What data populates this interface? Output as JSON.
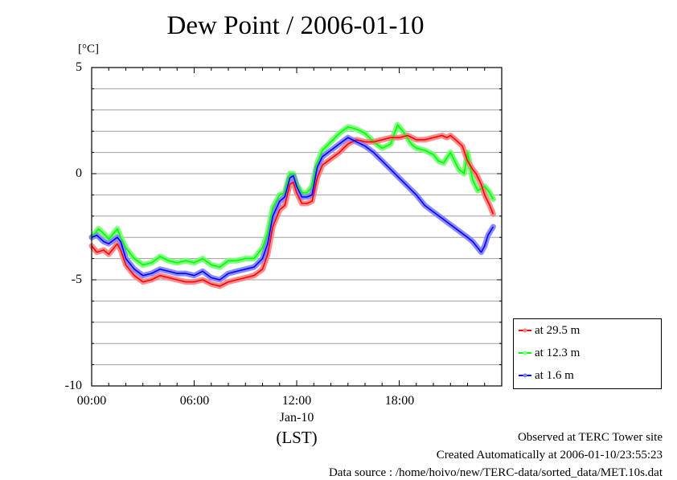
{
  "title": "Dew Point / 2006-01-10",
  "chart_data": {
    "type": "line",
    "title": "Dew Point / 2006-01-10",
    "ylabel": "[°C]",
    "xlabel": "(LST)",
    "x_date_label": "Jan-10",
    "ylim": [
      -10,
      5
    ],
    "xlim": [
      0,
      24
    ],
    "xticks": [
      "00:00",
      "06:00",
      "12:00",
      "18:00"
    ],
    "yticks": [
      "5",
      "0",
      "-5",
      "-10"
    ],
    "grid": true,
    "legend_position": "lower-right-outside",
    "series": [
      {
        "name": "at 29.5 m",
        "color": "#ff0000",
        "points": [
          [
            0.0,
            -3.4
          ],
          [
            0.3,
            -3.7
          ],
          [
            0.7,
            -3.6
          ],
          [
            1.0,
            -3.8
          ],
          [
            1.5,
            -3.3
          ],
          [
            1.7,
            -3.6
          ],
          [
            2.0,
            -4.3
          ],
          [
            2.5,
            -4.8
          ],
          [
            3.0,
            -5.1
          ],
          [
            3.5,
            -5.0
          ],
          [
            4.0,
            -4.8
          ],
          [
            4.5,
            -4.9
          ],
          [
            5.0,
            -5.0
          ],
          [
            5.5,
            -5.1
          ],
          [
            6.0,
            -5.1
          ],
          [
            6.5,
            -5.0
          ],
          [
            7.0,
            -5.2
          ],
          [
            7.5,
            -5.3
          ],
          [
            8.0,
            -5.1
          ],
          [
            8.5,
            -5.0
          ],
          [
            9.0,
            -4.9
          ],
          [
            9.5,
            -4.8
          ],
          [
            10.0,
            -4.5
          ],
          [
            10.3,
            -3.8
          ],
          [
            10.6,
            -2.5
          ],
          [
            11.0,
            -1.7
          ],
          [
            11.3,
            -1.5
          ],
          [
            11.6,
            -0.5
          ],
          [
            11.8,
            -0.4
          ],
          [
            12.0,
            -0.9
          ],
          [
            12.3,
            -1.4
          ],
          [
            12.6,
            -1.4
          ],
          [
            12.9,
            -1.3
          ],
          [
            13.2,
            -0.2
          ],
          [
            13.5,
            0.4
          ],
          [
            14.0,
            0.7
          ],
          [
            14.5,
            1.0
          ],
          [
            15.0,
            1.4
          ],
          [
            15.5,
            1.6
          ],
          [
            16.0,
            1.5
          ],
          [
            16.5,
            1.5
          ],
          [
            17.0,
            1.6
          ],
          [
            17.5,
            1.7
          ],
          [
            18.0,
            1.7
          ],
          [
            18.5,
            1.8
          ],
          [
            19.0,
            1.6
          ],
          [
            19.5,
            1.6
          ],
          [
            20.0,
            1.7
          ],
          [
            20.5,
            1.8
          ],
          [
            20.8,
            1.7
          ],
          [
            21.0,
            1.8
          ],
          [
            21.3,
            1.6
          ],
          [
            21.7,
            1.3
          ],
          [
            22.0,
            0.6
          ],
          [
            22.3,
            0.2
          ],
          [
            22.5,
            0.0
          ],
          [
            22.8,
            -0.5
          ],
          [
            23.0,
            -1.0
          ],
          [
            23.3,
            -1.5
          ],
          [
            23.5,
            -1.9
          ]
        ]
      },
      {
        "name": "at 12.3 m",
        "color": "#00ff00",
        "points": [
          [
            0.0,
            -3.0
          ],
          [
            0.4,
            -2.6
          ],
          [
            0.8,
            -2.9
          ],
          [
            1.0,
            -3.1
          ],
          [
            1.5,
            -2.6
          ],
          [
            1.7,
            -3.0
          ],
          [
            2.0,
            -3.5
          ],
          [
            2.5,
            -4.0
          ],
          [
            3.0,
            -4.3
          ],
          [
            3.5,
            -4.2
          ],
          [
            4.0,
            -3.9
          ],
          [
            4.5,
            -4.1
          ],
          [
            5.0,
            -4.2
          ],
          [
            5.5,
            -4.1
          ],
          [
            6.0,
            -4.2
          ],
          [
            6.5,
            -4.0
          ],
          [
            7.0,
            -4.3
          ],
          [
            7.5,
            -4.4
          ],
          [
            8.0,
            -4.1
          ],
          [
            8.5,
            -4.1
          ],
          [
            9.0,
            -4.0
          ],
          [
            9.5,
            -4.0
          ],
          [
            10.0,
            -3.5
          ],
          [
            10.3,
            -2.8
          ],
          [
            10.6,
            -1.6
          ],
          [
            11.0,
            -1.0
          ],
          [
            11.3,
            -0.9
          ],
          [
            11.6,
            0.0
          ],
          [
            11.8,
            0.0
          ],
          [
            12.0,
            -0.5
          ],
          [
            12.3,
            -0.9
          ],
          [
            12.6,
            -0.9
          ],
          [
            12.9,
            -0.6
          ],
          [
            13.2,
            0.5
          ],
          [
            13.5,
            1.1
          ],
          [
            14.0,
            1.5
          ],
          [
            14.5,
            1.9
          ],
          [
            15.0,
            2.2
          ],
          [
            15.5,
            2.1
          ],
          [
            16.0,
            1.9
          ],
          [
            16.5,
            1.5
          ],
          [
            17.0,
            1.2
          ],
          [
            17.5,
            1.4
          ],
          [
            17.9,
            2.3
          ],
          [
            18.3,
            1.9
          ],
          [
            18.7,
            1.4
          ],
          [
            19.0,
            1.2
          ],
          [
            19.5,
            1.1
          ],
          [
            20.0,
            0.9
          ],
          [
            20.3,
            0.6
          ],
          [
            20.6,
            0.5
          ],
          [
            21.0,
            1.0
          ],
          [
            21.3,
            0.5
          ],
          [
            21.5,
            0.2
          ],
          [
            21.8,
            0.0
          ],
          [
            22.0,
            1.0
          ],
          [
            22.3,
            -0.3
          ],
          [
            22.6,
            -0.8
          ],
          [
            23.0,
            -0.6
          ],
          [
            23.3,
            -0.9
          ],
          [
            23.5,
            -1.2
          ]
        ]
      },
      {
        "name": "at 1.6 m",
        "color": "#0000ff",
        "points": [
          [
            0.0,
            -3.0
          ],
          [
            0.3,
            -2.9
          ],
          [
            0.7,
            -3.2
          ],
          [
            1.0,
            -3.3
          ],
          [
            1.5,
            -3.0
          ],
          [
            1.7,
            -3.2
          ],
          [
            2.0,
            -4.0
          ],
          [
            2.5,
            -4.5
          ],
          [
            3.0,
            -4.8
          ],
          [
            3.5,
            -4.7
          ],
          [
            4.0,
            -4.5
          ],
          [
            4.5,
            -4.6
          ],
          [
            5.0,
            -4.7
          ],
          [
            5.5,
            -4.7
          ],
          [
            6.0,
            -4.8
          ],
          [
            6.5,
            -4.6
          ],
          [
            7.0,
            -4.9
          ],
          [
            7.5,
            -5.0
          ],
          [
            8.0,
            -4.7
          ],
          [
            8.5,
            -4.6
          ],
          [
            9.0,
            -4.5
          ],
          [
            9.5,
            -4.4
          ],
          [
            10.0,
            -4.0
          ],
          [
            10.3,
            -3.3
          ],
          [
            10.6,
            -2.0
          ],
          [
            11.0,
            -1.3
          ],
          [
            11.3,
            -1.1
          ],
          [
            11.6,
            -0.2
          ],
          [
            11.8,
            -0.1
          ],
          [
            12.0,
            -0.6
          ],
          [
            12.3,
            -1.1
          ],
          [
            12.6,
            -1.1
          ],
          [
            12.9,
            -1.0
          ],
          [
            13.2,
            0.3
          ],
          [
            13.5,
            0.8
          ],
          [
            14.0,
            1.1
          ],
          [
            14.5,
            1.4
          ],
          [
            15.0,
            1.7
          ],
          [
            15.5,
            1.5
          ],
          [
            16.0,
            1.3
          ],
          [
            16.5,
            1.0
          ],
          [
            17.0,
            0.6
          ],
          [
            17.5,
            0.2
          ],
          [
            18.0,
            -0.2
          ],
          [
            18.5,
            -0.6
          ],
          [
            19.0,
            -1.0
          ],
          [
            19.5,
            -1.5
          ],
          [
            20.0,
            -1.8
          ],
          [
            20.5,
            -2.1
          ],
          [
            21.0,
            -2.4
          ],
          [
            21.5,
            -2.7
          ],
          [
            22.0,
            -3.0
          ],
          [
            22.3,
            -3.2
          ],
          [
            22.6,
            -3.5
          ],
          [
            22.8,
            -3.7
          ],
          [
            23.0,
            -3.4
          ],
          [
            23.2,
            -2.9
          ],
          [
            23.5,
            -2.5
          ]
        ]
      }
    ]
  },
  "footer": {
    "observed": "Observed at TERC Tower site",
    "created": "Created Automatically at 2006-01-10/23:55:23",
    "source": "Data source : /home/hoivo/new/TERC-data/sorted_data/MET.10s.dat"
  }
}
